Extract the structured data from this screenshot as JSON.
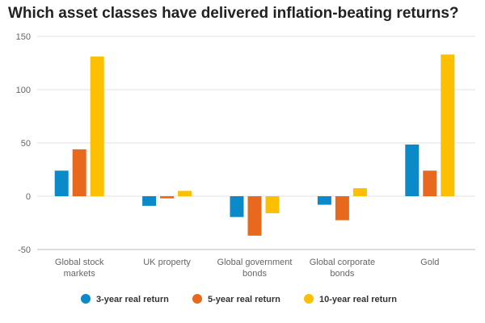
{
  "chart_data": {
    "type": "bar",
    "title": "Which asset classes have delivered inflation-beating returns?",
    "xlabel": "",
    "ylabel": "",
    "ylim": [
      -50,
      150
    ],
    "yticks": [
      150,
      100,
      50,
      0,
      -50
    ],
    "grid": true,
    "legend_position": "bottom",
    "categories": [
      [
        "Global stock",
        "markets"
      ],
      [
        "UK property"
      ],
      [
        "Global government",
        "bonds"
      ],
      [
        "Global corporate",
        "bonds"
      ],
      [
        "Gold"
      ]
    ],
    "series": [
      {
        "name": "3-year real return",
        "color": "#0a8ac8",
        "values": [
          24,
          -9,
          -19.5,
          -8,
          48.5
        ]
      },
      {
        "name": "5-year real return",
        "color": "#e8681e",
        "values": [
          44,
          -2,
          -37,
          -22.5,
          24
        ]
      },
      {
        "name": "10-year real return",
        "color": "#fcc000",
        "values": [
          131,
          5,
          -16,
          7.5,
          133
        ]
      }
    ]
  }
}
